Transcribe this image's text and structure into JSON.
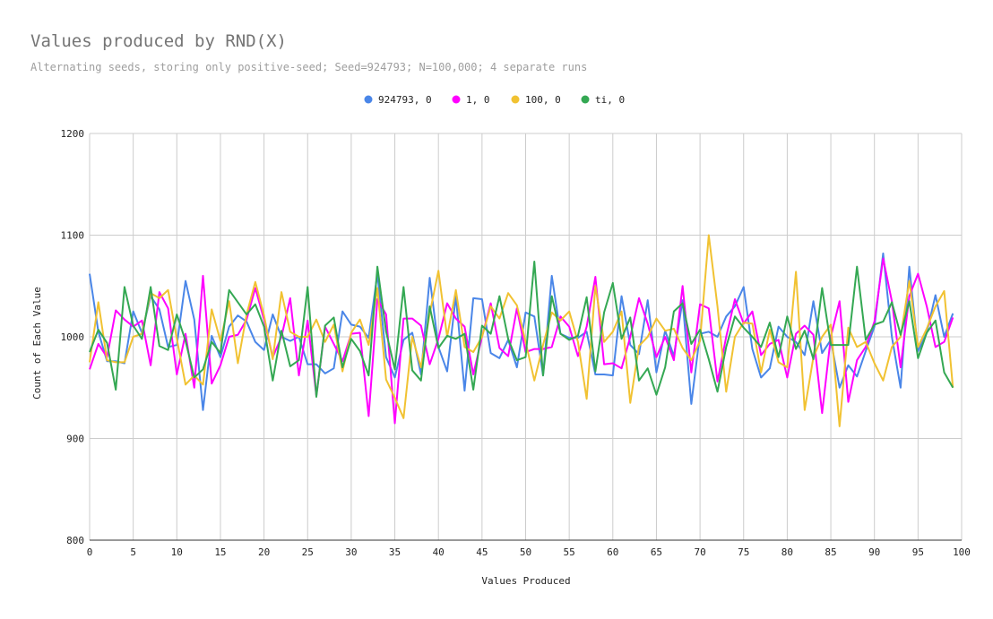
{
  "chart_data": {
    "type": "line",
    "title": "Values produced by RND(X)",
    "subtitle": "Alternating seeds, storing only positive-seed; Seed=924793; N=100,000; 4 separate runs",
    "xlabel": "Values Produced",
    "ylabel": "Count of Each Value",
    "xlim": [
      0,
      100
    ],
    "ylim": [
      800,
      1200
    ],
    "x_ticks": [
      0,
      5,
      10,
      15,
      20,
      25,
      30,
      35,
      40,
      45,
      50,
      55,
      60,
      65,
      70,
      75,
      80,
      85,
      90,
      95,
      100
    ],
    "y_ticks": [
      800,
      900,
      1000,
      1100,
      1200
    ],
    "grid": true,
    "legend_position": "top",
    "x": [
      0,
      1,
      2,
      3,
      4,
      5,
      6,
      7,
      8,
      9,
      10,
      11,
      12,
      13,
      14,
      15,
      16,
      17,
      18,
      19,
      20,
      21,
      22,
      23,
      24,
      25,
      26,
      27,
      28,
      29,
      30,
      31,
      32,
      33,
      34,
      35,
      36,
      37,
      38,
      39,
      40,
      41,
      42,
      43,
      44,
      45,
      46,
      47,
      48,
      49,
      50,
      51,
      52,
      53,
      54,
      55,
      56,
      57,
      58,
      59,
      60,
      61,
      62,
      63,
      64,
      65,
      66,
      67,
      68,
      69,
      70,
      71,
      72,
      73,
      74,
      75,
      76,
      77,
      78,
      79,
      80,
      81,
      82,
      83,
      84,
      85,
      86,
      87,
      88,
      89,
      90,
      91,
      92,
      93,
      94,
      95,
      96,
      97,
      98,
      99
    ],
    "series": [
      {
        "name": "924793, 0",
        "color": "#4a86e8",
        "values": [
          1062,
          1005,
          976,
          976,
          974,
          1025,
          1004,
          1040,
          1027,
          990,
          992,
          1055,
          1017,
          928,
          1001,
          980,
          1010,
          1021,
          1015,
          995,
          987,
          1022,
          1000,
          996,
          1000,
          973,
          973,
          964,
          969,
          1025,
          1012,
          1010,
          999,
          1062,
          980,
          960,
          997,
          1004,
          963,
          1058,
          990,
          966,
          1040,
          947,
          1038,
          1037,
          984,
          979,
          997,
          970,
          1024,
          1020,
          962,
          1060,
          1003,
          999,
          999,
          1005,
          963,
          963,
          962,
          1040,
          992,
          983,
          1036,
          965,
          1006,
          981,
          1036,
          934,
          1003,
          1005,
          1000,
          1020,
          1030,
          1049,
          988,
          960,
          969,
          1010,
          1000,
          995,
          982,
          1035,
          984,
          997,
          950,
          972,
          961,
          986,
          1010,
          1082,
          1000,
          950,
          1069,
          986,
          1004,
          1041,
          1000,
          1023
        ]
      },
      {
        "name": "1, 0",
        "color": "#ff00ff",
        "values": [
          968,
          993,
          980,
          1026,
          1017,
          1010,
          1016,
          972,
          1044,
          1028,
          963,
          1003,
          950,
          1060,
          954,
          972,
          1000,
          1002,
          1017,
          1048,
          1017,
          980,
          1000,
          1038,
          962,
          1016,
          942,
          1010,
          993,
          976,
          1003,
          1004,
          922,
          1037,
          1022,
          915,
          1018,
          1018,
          1011,
          973,
          998,
          1033,
          1018,
          1010,
          963,
          1000,
          1033,
          989,
          981,
          1028,
          985,
          988,
          988,
          990,
          1020,
          1010,
          981,
          1010,
          1059,
          973,
          974,
          969,
          1000,
          1038,
          1013,
          980,
          1000,
          977,
          1050,
          965,
          1032,
          1028,
          956,
          1000,
          1037,
          1013,
          1025,
          982,
          993,
          997,
          960,
          1003,
          1011,
          1002,
          925,
          1000,
          1035,
          936,
          977,
          990,
          1015,
          1077,
          1035,
          970,
          1040,
          1062,
          1030,
          990,
          995,
          1019
        ]
      },
      {
        "name": "100, 0",
        "color": "#f1c232",
        "values": [
          975,
          1034,
          977,
          975,
          975,
          1000,
          1003,
          1043,
          1038,
          1046,
          998,
          953,
          962,
          953,
          1027,
          996,
          1035,
          974,
          1022,
          1054,
          1021,
          978,
          1044,
          1005,
          1000,
          1000,
          1017,
          995,
          1012,
          966,
          1004,
          1017,
          992,
          1048,
          958,
          940,
          920,
          1000,
          970,
          1023,
          1065,
          1000,
          1046,
          990,
          985,
          1000,
          1030,
          1018,
          1043,
          1031,
          995,
          957,
          992,
          1024,
          1016,
          1025,
          995,
          939,
          1050,
          995,
          1005,
          1025,
          935,
          991,
          1000,
          1018,
          1006,
          1008,
          989,
          977,
          996,
          1100,
          1030,
          946,
          1000,
          1014,
          1013,
          965,
          1007,
          975,
          970,
          1064,
          928,
          980,
          1000,
          1012,
          912,
          1009,
          990,
          995,
          974,
          957,
          990,
          1000,
          1055,
          990,
          1008,
          1030,
          1045,
          950
        ]
      },
      {
        "name": "ti, 0",
        "color": "#34a853",
        "values": [
          985,
          1007,
          994,
          948,
          1049,
          1011,
          998,
          1049,
          991,
          987,
          1022,
          996,
          960,
          968,
          995,
          984,
          1046,
          1034,
          1022,
          1032,
          1010,
          957,
          1006,
          971,
          977,
          1049,
          941,
          1011,
          1019,
          970,
          998,
          986,
          962,
          1069,
          1005,
          968,
          1049,
          967,
          957,
          1030,
          989,
          1001,
          998,
          1003,
          948,
          1011,
          1003,
          1040,
          998,
          977,
          980,
          1074,
          962,
          1040,
          1003,
          997,
          1001,
          1039,
          966,
          1024,
          1053,
          998,
          1019,
          957,
          969,
          943,
          970,
          1025,
          1033,
          993,
          1007,
          978,
          946,
          990,
          1020,
          1009,
          1000,
          990,
          1014,
          980,
          1020,
          988,
          1006,
          978,
          1048,
          992,
          992,
          992,
          1069,
          997,
          1012,
          1015,
          1034,
          1002,
          1035,
          979,
          1004,
          1016,
          965,
          950
        ]
      }
    ]
  }
}
